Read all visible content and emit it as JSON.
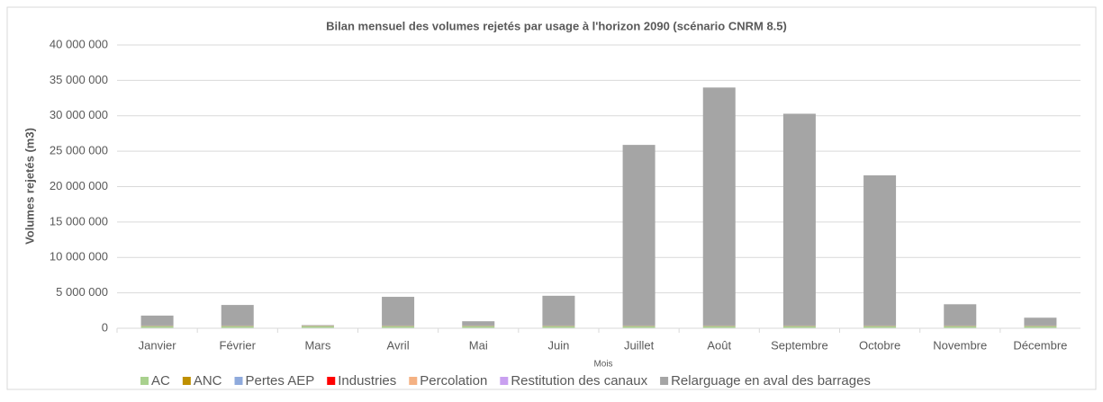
{
  "chart_data": {
    "type": "stacked_bar",
    "title": "Bilan mensuel des volumes rejetés par usage à l'horizon 2090 (scénario CNRM 8.5)",
    "x_label": "Mois",
    "y_label": "Volumes rejetés (m3)",
    "categories": [
      "Janvier",
      "Février",
      "Mars",
      "Avril",
      "Mai",
      "Juin",
      "Juillet",
      "Août",
      "Septembre",
      "Octobre",
      "Novembre",
      "Décembre"
    ],
    "series": [
      {
        "name": "AC",
        "color": "#a9d18e",
        "values": [
          300000,
          300000,
          300000,
          300000,
          300000,
          300000,
          300000,
          300000,
          300000,
          300000,
          300000,
          300000
        ]
      },
      {
        "name": "ANC",
        "color": "#bf9000",
        "values": [
          30000,
          30000,
          30000,
          30000,
          30000,
          30000,
          30000,
          30000,
          30000,
          30000,
          30000,
          30000
        ]
      },
      {
        "name": "Pertes AEP",
        "color": "#8faadc",
        "values": [
          40000,
          40000,
          40000,
          40000,
          40000,
          40000,
          40000,
          40000,
          40000,
          40000,
          40000,
          40000
        ]
      },
      {
        "name": "Industries",
        "color": "#ff0000",
        "values": [
          10000,
          10000,
          10000,
          10000,
          10000,
          10000,
          10000,
          10000,
          10000,
          10000,
          10000,
          10000
        ]
      },
      {
        "name": "Percolation",
        "color": "#f4b183",
        "values": [
          5000,
          5000,
          5000,
          5000,
          5000,
          5000,
          5000,
          5000,
          5000,
          5000,
          5000,
          5000
        ]
      },
      {
        "name": "Restitution des canaux",
        "color": "#c9a0f0",
        "values": [
          5000,
          5000,
          5000,
          5000,
          5000,
          5000,
          5000,
          5000,
          5000,
          5000,
          5000,
          5000
        ]
      },
      {
        "name": "Relarguage en aval des barrages",
        "color": "#a5a5a5",
        "values": [
          1400000,
          2900000,
          60000,
          4050000,
          600000,
          4200000,
          25500000,
          33600000,
          29900000,
          21200000,
          3000000,
          1100000
        ]
      }
    ],
    "ylim": [
      0,
      40000000
    ],
    "yticks": [
      {
        "value": 0,
        "label": "0"
      },
      {
        "value": 5000000,
        "label": "5 000 000"
      },
      {
        "value": 10000000,
        "label": "10 000 000"
      },
      {
        "value": 15000000,
        "label": "15 000 000"
      },
      {
        "value": 20000000,
        "label": "20 000 000"
      },
      {
        "value": 25000000,
        "label": "25 000 000"
      },
      {
        "value": 30000000,
        "label": "30 000 000"
      },
      {
        "value": 35000000,
        "label": "35 000 000"
      },
      {
        "value": 40000000,
        "label": "40 000 000"
      }
    ],
    "grid": true,
    "legend": "bottom"
  }
}
